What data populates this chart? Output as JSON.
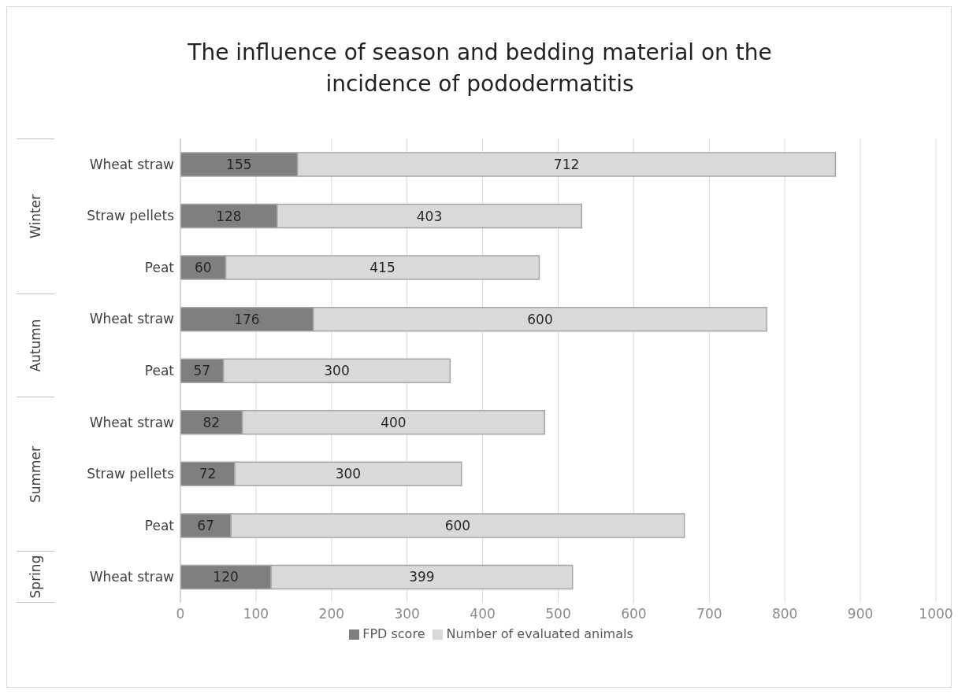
{
  "chart_data": {
    "type": "bar",
    "orientation": "horizontal",
    "stacked": true,
    "title": "The influence of season and bedding material on the incidence of pododermatitis",
    "categories": [
      "Wheat straw",
      "Straw pellets",
      "Peat",
      "Wheat straw",
      "Peat",
      "Wheat straw",
      "Straw pellets",
      "Peat",
      "Wheat straw"
    ],
    "series": [
      {
        "name": "FPD score",
        "color": "#7f7f7f",
        "values": [
          155,
          128,
          60,
          176,
          57,
          82,
          72,
          67,
          120
        ]
      },
      {
        "name": "Number of evaluated animals",
        "color": "#d9d9d9",
        "values": [
          712,
          403,
          415,
          600,
          300,
          400,
          300,
          600,
          399
        ]
      }
    ],
    "xlim": [
      0,
      1000
    ],
    "xticks": [
      0,
      100,
      200,
      300,
      400,
      500,
      600,
      700,
      800,
      900,
      1000
    ],
    "grid": "x",
    "legend": "bottom",
    "data_labels": true,
    "annotations": [
      "Winter",
      "Autumn",
      "Summer",
      "Spring"
    ]
  }
}
